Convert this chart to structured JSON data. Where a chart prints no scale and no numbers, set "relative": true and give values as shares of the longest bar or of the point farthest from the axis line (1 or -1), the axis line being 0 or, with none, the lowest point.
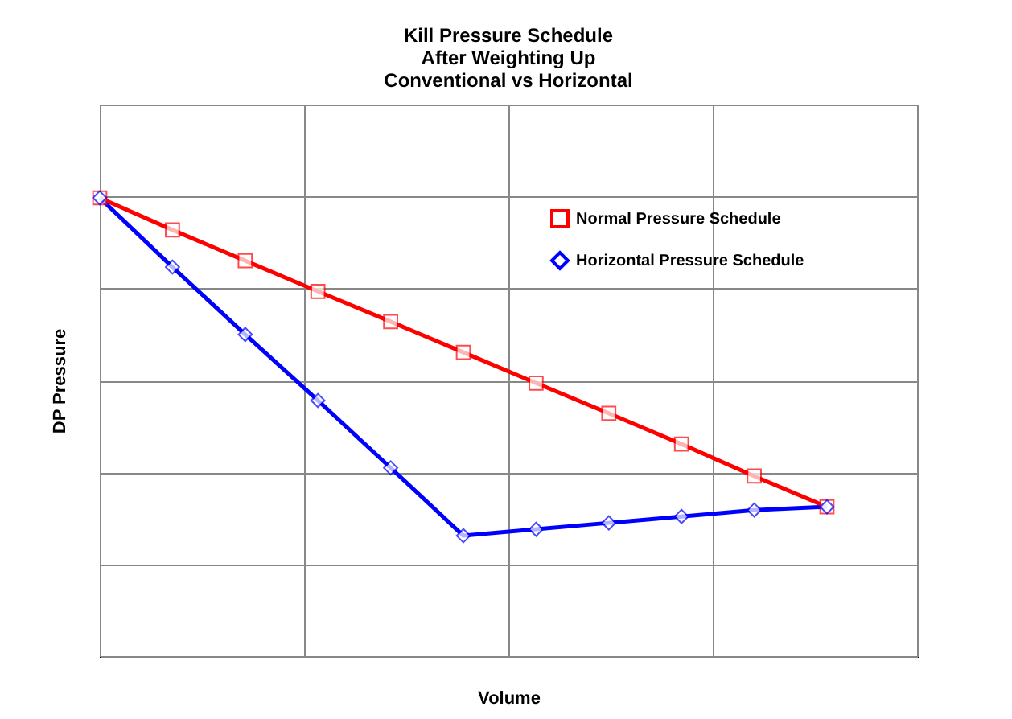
{
  "chart_data": {
    "type": "line",
    "title": "Kill Pressure Schedule\nAfter Weighting Up\nConventional vs Horizontal",
    "xlabel": "Volume",
    "ylabel": "DP Pressure",
    "relative": true,
    "categories": [
      null,
      null,
      null,
      null,
      null,
      null,
      null,
      null,
      null,
      null,
      null
    ],
    "series": [
      {
        "name": "Normal Pressure Schedule",
        "color": "#ff0000",
        "marker": "square",
        "values": [
          1,
          0.93,
          0.863,
          0.796,
          0.73,
          0.663,
          0.596,
          0.53,
          0.463,
          0.393,
          0.326
        ]
      },
      {
        "name": "Horizontal Pressure Schedule",
        "color": "#0000ff",
        "marker": "diamond",
        "values": [
          1,
          0.849,
          0.702,
          0.558,
          0.411,
          0.263,
          0.277,
          0.291,
          0.305,
          0.319,
          0.326
        ]
      }
    ],
    "grid": true,
    "legend": "top right",
    "line_style": "solid"
  }
}
